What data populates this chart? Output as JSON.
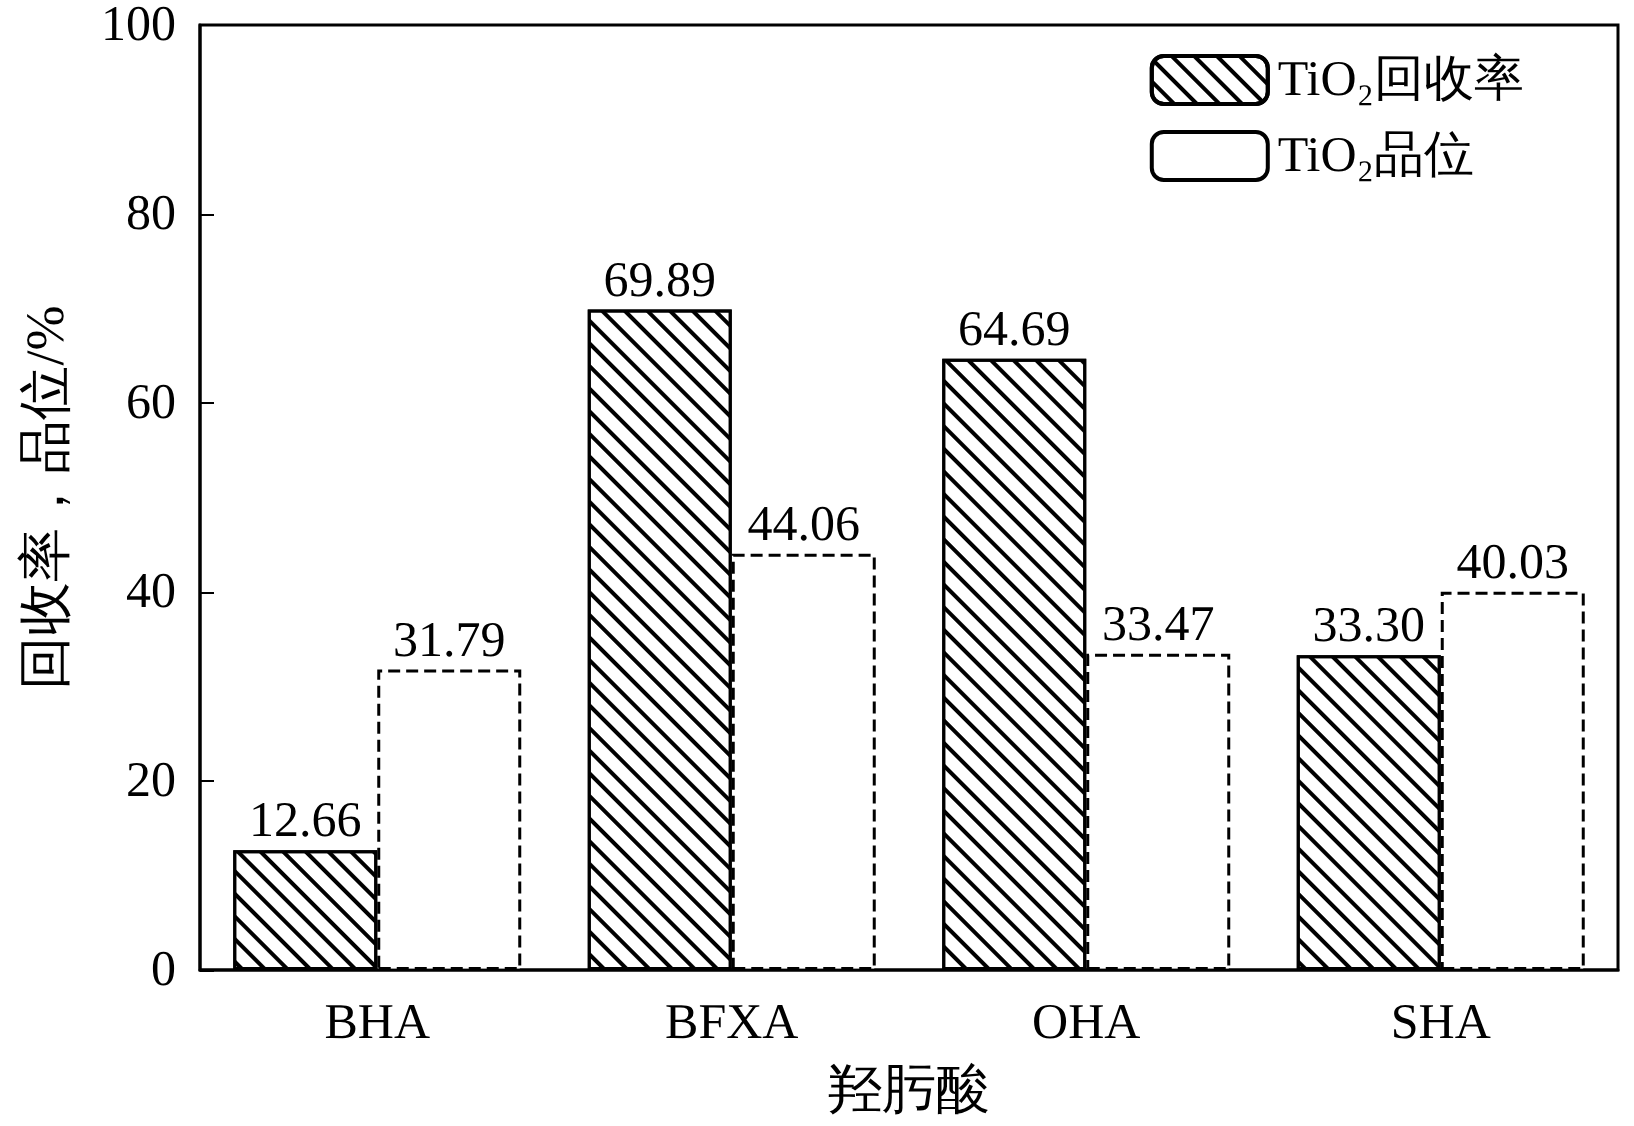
{
  "chart_data": {
    "type": "bar",
    "xlabel": "羟肟酸",
    "ylabel": "回收率，品位/%",
    "categories": [
      "BHA",
      "BFXA",
      "OHA",
      "SHA"
    ],
    "series": [
      {
        "name": "TiO₂回收率",
        "color": "#ffffff",
        "line_style": "solid",
        "values": [
          12.66,
          69.89,
          64.69,
          33.3
        ],
        "value_labels": [
          "12.66",
          "69.89",
          "64.69",
          "33.30"
        ]
      },
      {
        "name": "TiO₂品位",
        "color": "#ffffff",
        "line_style": "dashed",
        "values": [
          31.79,
          44.06,
          33.47,
          40.03
        ],
        "value_labels": [
          "31.79",
          "44.06",
          "33.47",
          "40.03"
        ]
      }
    ],
    "ylim": [
      0,
      100
    ],
    "yticks": [
      0,
      20,
      40,
      60,
      80,
      100
    ],
    "grid": false,
    "legend": "top right"
  }
}
